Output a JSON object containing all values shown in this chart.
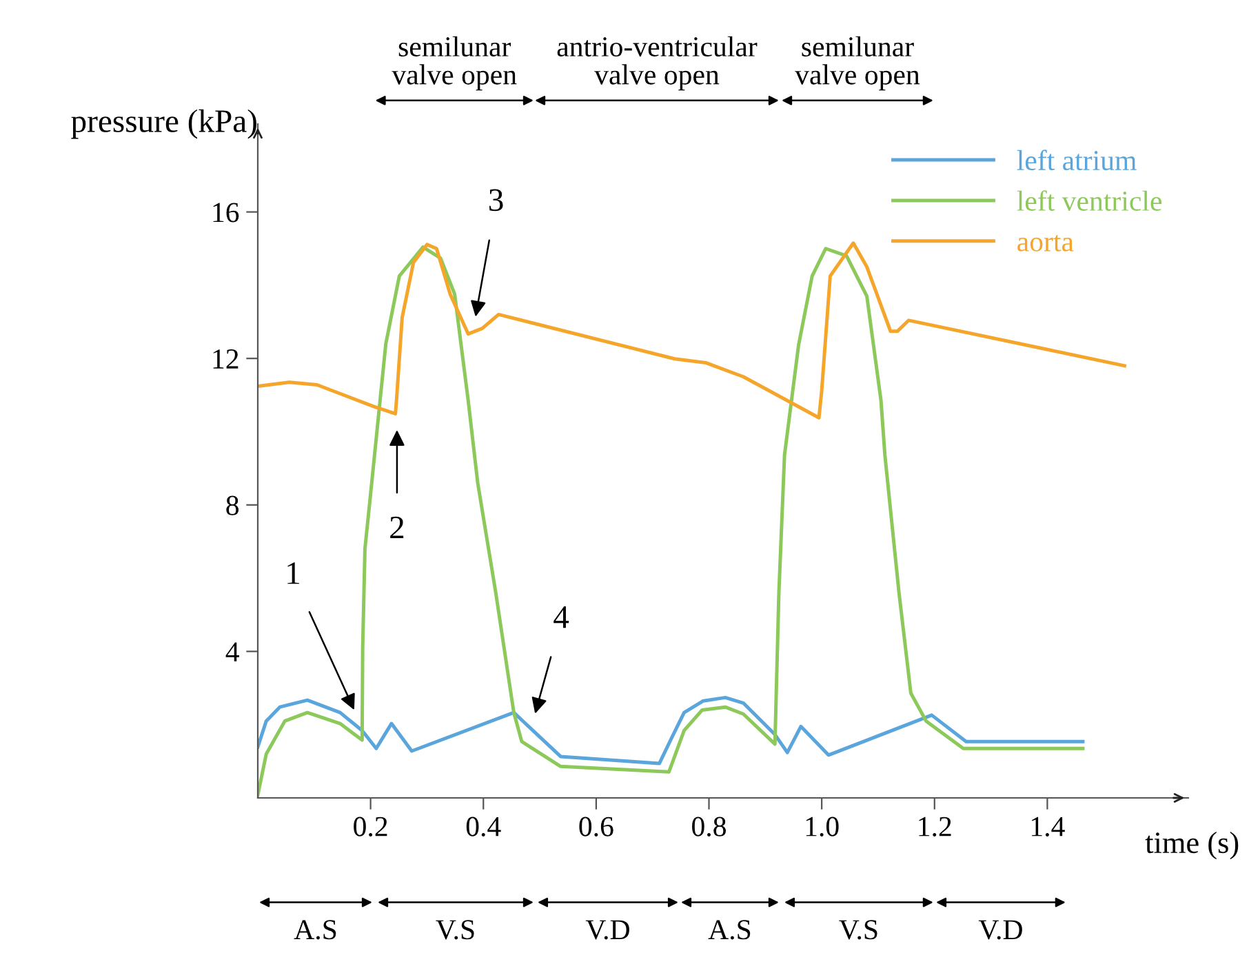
{
  "chart_data": {
    "type": "line",
    "xlabel": "time (s)",
    "ylabel": "pressure (kPa)",
    "xlim": [
      0,
      1.65
    ],
    "ylim": [
      0,
      18.4
    ],
    "xticks": [
      0.2,
      0.4,
      0.6,
      0.8,
      {
        "value": 1.0,
        "label": "1.0"
      },
      1.2,
      1.4
    ],
    "yticks": [
      4,
      8,
      12,
      16
    ],
    "legend": "top right",
    "series": [
      {
        "name": "left atrium",
        "color": "#5aa6dc",
        "x": [
          0,
          0.015,
          0.039,
          0.088,
          0.146,
          0.185,
          0.21,
          0.237,
          0.273,
          0.454,
          0.537,
          0.712,
          0.732,
          0.756,
          0.79,
          0.829,
          0.861,
          0.917,
          0.939,
          0.963,
          1.012,
          1.195,
          1.256,
          1.463
        ],
        "values": [
          1.39,
          2.1,
          2.48,
          2.67,
          2.33,
          1.84,
          1.35,
          2.03,
          1.28,
          2.33,
          1.13,
          0.94,
          1.58,
          2.33,
          2.65,
          2.74,
          2.59,
          1.73,
          1.24,
          1.95,
          1.17,
          2.26,
          1.54,
          1.54
        ]
      },
      {
        "name": "left ventricle",
        "color": "#8cc85a",
        "x": [
          0,
          0.015,
          0.048,
          0.088,
          0.146,
          0.185,
          0.186,
          0.19,
          0.202,
          0.227,
          0.251,
          0.293,
          0.324,
          0.349,
          0.373,
          0.39,
          0.422,
          0.454,
          0.468,
          0.537,
          0.729,
          0.756,
          0.788,
          0.829,
          0.861,
          0.917,
          0.924,
          0.934,
          0.959,
          0.983,
          1.007,
          1.044,
          1.08,
          1.105,
          1.112,
          1.137,
          1.158,
          1.185,
          1.251,
          1.463
        ],
        "values": [
          0.08,
          1.2,
          2.1,
          2.33,
          2.03,
          1.58,
          4.1,
          6.8,
          8.6,
          12.4,
          14.25,
          15.04,
          14.74,
          13.76,
          10.86,
          8.6,
          5.6,
          2.33,
          1.54,
          0.86,
          0.71,
          1.84,
          2.4,
          2.48,
          2.29,
          1.47,
          5.6,
          9.36,
          12.37,
          14.25,
          15.0,
          14.8,
          13.7,
          10.86,
          9.36,
          5.6,
          2.86,
          2.1,
          1.35,
          1.35
        ]
      },
      {
        "name": "aorta",
        "color": "#f5a52a",
        "x": [
          0,
          0.056,
          0.105,
          0.207,
          0.244,
          0.246,
          0.256,
          0.276,
          0.3,
          0.317,
          0.341,
          0.373,
          0.398,
          0.427,
          0.739,
          0.795,
          0.861,
          0.995,
          1.0,
          1.015,
          1.056,
          1.08,
          1.122,
          1.134,
          1.154,
          1.537
        ],
        "values": [
          11.24,
          11.35,
          11.28,
          10.68,
          10.49,
          10.86,
          13.12,
          14.62,
          15.11,
          15.0,
          13.76,
          12.67,
          12.82,
          13.2,
          11.99,
          11.88,
          11.5,
          10.38,
          11.13,
          14.25,
          15.15,
          14.5,
          12.74,
          12.74,
          13.04,
          11.8
        ]
      }
    ],
    "annotations": [
      {
        "text": "1",
        "x": 0.171,
        "y": 2.4
      },
      "2",
      "3",
      "4",
      "semilunar\nvalve open",
      "antrio-ventricular\nvalve open",
      "semilunar\nvalve open",
      "A.S",
      "V.S",
      "V.D",
      "A.S",
      "V.S",
      "V.D"
    ]
  }
}
